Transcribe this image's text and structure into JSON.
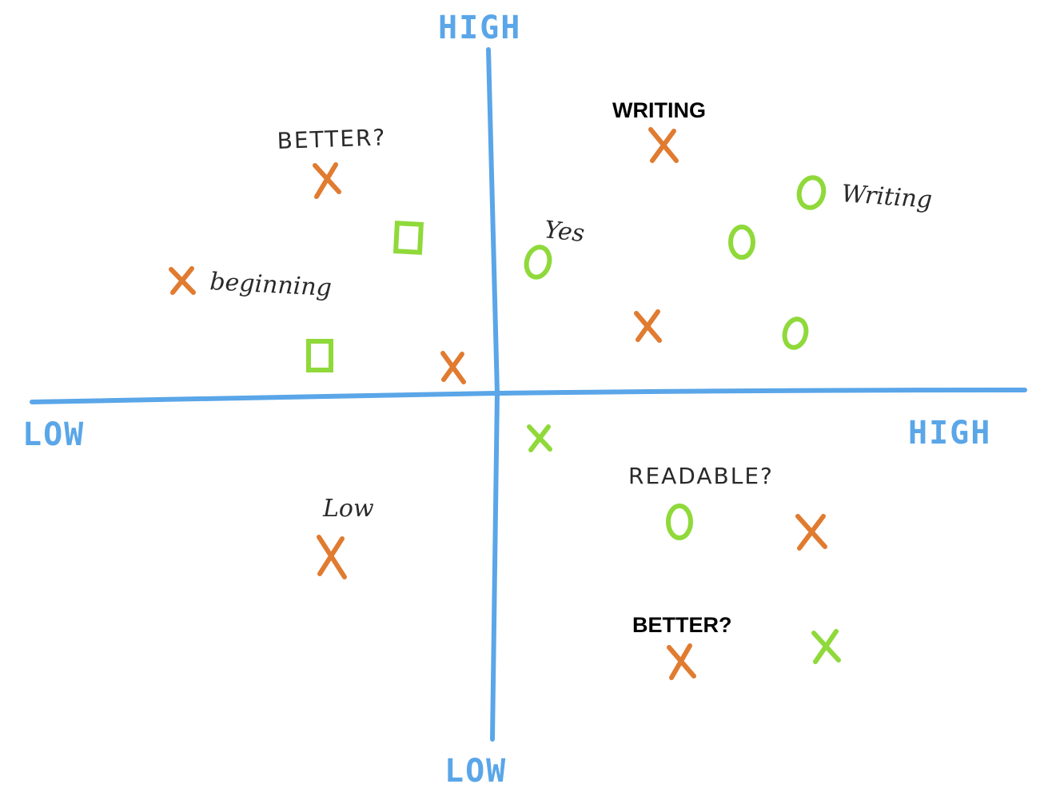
{
  "axes": {
    "y_high": "HIGH",
    "y_low": "LOW",
    "x_low": "LOW",
    "x_high": "HIGH"
  },
  "labels": {
    "writing_bold": "WRITING",
    "better_q_hand": "BETTER?",
    "writing_hand": "Writing",
    "yes_hand": "Yes",
    "beginning_hand": "beginning",
    "readable_q_hand": "READABLE?",
    "low_hand": "Low",
    "better_q_bold": "BETTER?"
  },
  "colors": {
    "axis": "#5aa6e8",
    "orange_mark": "#e07b30",
    "green_mark": "#8fd93a",
    "text": "#2a2a2a"
  },
  "chart_data": {
    "type": "scatter",
    "xlabel": "",
    "ylabel": "",
    "points": [
      {
        "shape": "x",
        "color": "orange",
        "quadrant": "top-left",
        "label": "BETTER?"
      },
      {
        "shape": "square",
        "color": "green",
        "quadrant": "top-left"
      },
      {
        "shape": "x",
        "color": "orange",
        "quadrant": "top-left",
        "label": "beginning"
      },
      {
        "shape": "square",
        "color": "green",
        "quadrant": "top-left"
      },
      {
        "shape": "x",
        "color": "orange",
        "quadrant": "top-left"
      },
      {
        "shape": "x",
        "color": "orange",
        "quadrant": "top-right",
        "label": "WRITING"
      },
      {
        "shape": "o",
        "color": "green",
        "quadrant": "top-right",
        "label": "Writing"
      },
      {
        "shape": "o",
        "color": "green",
        "quadrant": "top-right"
      },
      {
        "shape": "o",
        "color": "green",
        "quadrant": "top-right",
        "label": "Yes"
      },
      {
        "shape": "x",
        "color": "orange",
        "quadrant": "top-right"
      },
      {
        "shape": "o",
        "color": "green",
        "quadrant": "top-right"
      },
      {
        "shape": "x",
        "color": "green",
        "quadrant": "bottom-right"
      },
      {
        "shape": "o",
        "color": "green",
        "quadrant": "bottom-right",
        "label": "READABLE?"
      },
      {
        "shape": "x",
        "color": "orange",
        "quadrant": "bottom-right"
      },
      {
        "shape": "x",
        "color": "orange",
        "quadrant": "bottom-right",
        "label": "BETTER?"
      },
      {
        "shape": "x",
        "color": "green",
        "quadrant": "bottom-right"
      },
      {
        "shape": "x",
        "color": "orange",
        "quadrant": "bottom-left",
        "label": "Low"
      }
    ]
  }
}
